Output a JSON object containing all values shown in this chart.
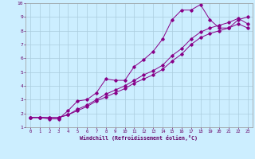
{
  "xlabel": "Windchill (Refroidissement éolien,°C)",
  "bg_color": "#cceeff",
  "grid_color": "#aaccdd",
  "line_color": "#880088",
  "xlim": [
    -0.5,
    23.5
  ],
  "ylim": [
    1,
    10
  ],
  "xticks": [
    0,
    1,
    2,
    3,
    4,
    5,
    6,
    7,
    8,
    9,
    10,
    11,
    12,
    13,
    14,
    15,
    16,
    17,
    18,
    19,
    20,
    21,
    22,
    23
  ],
  "yticks": [
    1,
    2,
    3,
    4,
    5,
    6,
    7,
    8,
    9,
    10
  ],
  "line1_x": [
    0,
    1,
    2,
    3,
    4,
    5,
    6,
    7,
    8,
    9,
    10,
    11,
    12,
    13,
    14,
    15,
    16,
    17,
    18,
    19,
    20,
    21,
    22,
    23
  ],
  "line1_y": [
    1.7,
    1.7,
    1.6,
    1.6,
    2.2,
    2.9,
    3.0,
    3.5,
    4.5,
    4.4,
    4.4,
    5.4,
    5.9,
    6.5,
    7.4,
    8.8,
    9.5,
    9.5,
    9.9,
    8.8,
    8.2,
    8.2,
    8.8,
    9.0
  ],
  "line2_x": [
    0,
    1,
    2,
    3,
    4,
    5,
    6,
    7,
    8,
    9,
    10,
    11,
    12,
    13,
    14,
    15,
    16,
    17,
    18,
    19,
    20,
    21,
    22,
    23
  ],
  "line2_y": [
    1.7,
    1.7,
    1.7,
    1.7,
    1.9,
    2.2,
    2.5,
    2.9,
    3.2,
    3.5,
    3.8,
    4.2,
    4.5,
    4.8,
    5.2,
    5.8,
    6.3,
    7.0,
    7.5,
    7.8,
    8.0,
    8.2,
    8.5,
    8.2
  ],
  "line3_x": [
    0,
    1,
    2,
    3,
    4,
    5,
    6,
    7,
    8,
    9,
    10,
    11,
    12,
    13,
    14,
    15,
    16,
    17,
    18,
    19,
    20,
    21,
    22,
    23
  ],
  "line3_y": [
    1.7,
    1.7,
    1.7,
    1.7,
    1.9,
    2.3,
    2.6,
    3.0,
    3.4,
    3.7,
    4.0,
    4.4,
    4.8,
    5.1,
    5.5,
    6.2,
    6.7,
    7.4,
    7.9,
    8.2,
    8.4,
    8.6,
    8.9,
    8.5
  ]
}
